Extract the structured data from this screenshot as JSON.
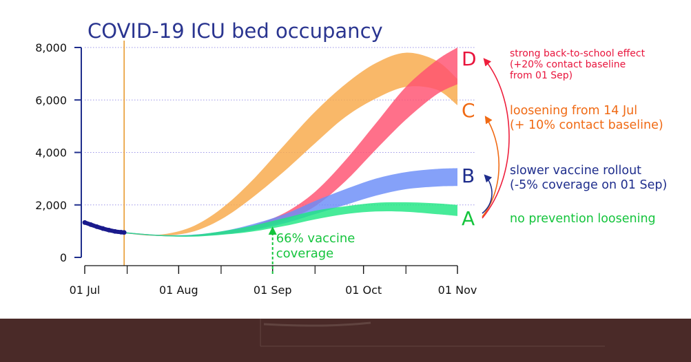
{
  "chart_data": {
    "type": "area",
    "title": "COVID-19 ICU bed occupancy",
    "xlabel": "",
    "ylabel": "",
    "x_domain": [
      "2021-07-01",
      "2021-11-01"
    ],
    "ylim": [
      0,
      8000
    ],
    "y_ticks": [
      0,
      2000,
      4000,
      6000,
      8000
    ],
    "y_tick_labels": [
      "0",
      "2,000",
      "4,000",
      "6,000",
      "8,000"
    ],
    "x_ticks": [
      "2021-07-01",
      "2021-08-01",
      "2021-09-01",
      "2021-10-01",
      "2021-11-01"
    ],
    "x_tick_labels": [
      "01 Jul",
      "01 Aug",
      "01 Sep",
      "01 Oct",
      "01 Nov"
    ],
    "x_minor_ticks": [
      "2021-07-15",
      "2021-08-15",
      "2021-09-15",
      "2021-10-15"
    ],
    "grid": "horizontal-dotted",
    "vline_date": "2021-07-14",
    "observed": {
      "x": [
        "2021-07-01",
        "2021-07-03",
        "2021-07-05",
        "2021-07-07",
        "2021-07-09",
        "2021-07-11",
        "2021-07-13",
        "2021-07-14"
      ],
      "y": [
        1330,
        1250,
        1170,
        1100,
        1040,
        990,
        960,
        950
      ],
      "color": "#1a1a8c"
    },
    "annotation": {
      "date": "2021-09-01",
      "text_lines": [
        "66% vaccine",
        "coverage"
      ],
      "color": "#14c43c"
    },
    "series": [
      {
        "name": "C",
        "label_lines": [
          "loosening from 14 Jul",
          "(+ 10% contact baseline)"
        ],
        "color": "#f8a848",
        "label_color": "#f06a14",
        "x": [
          "2021-07-14",
          "2021-07-25",
          "2021-08-05",
          "2021-08-15",
          "2021-08-25",
          "2021-09-05",
          "2021-09-15",
          "2021-09-25",
          "2021-10-05",
          "2021-10-15",
          "2021-10-25",
          "2021-11-01"
        ],
        "lower": [
          920,
          820,
          960,
          1450,
          2250,
          3300,
          4350,
          5350,
          6050,
          6500,
          6400,
          5800
        ],
        "upper": [
          960,
          860,
          1150,
          1850,
          2900,
          4300,
          5550,
          6600,
          7400,
          7800,
          7500,
          6800
        ]
      },
      {
        "name": "D",
        "label_lines": [
          "strong back-to-school effect",
          "(+20% contact baseline",
          "from 01 Sep)"
        ],
        "color": "#ff5070",
        "label_color": "#e8143c",
        "x": [
          "2021-07-14",
          "2021-07-25",
          "2021-08-05",
          "2021-08-15",
          "2021-08-25",
          "2021-09-05",
          "2021-09-15",
          "2021-09-25",
          "2021-10-05",
          "2021-10-15",
          "2021-10-25",
          "2021-11-01"
        ],
        "lower": [
          920,
          820,
          800,
          880,
          1050,
          1400,
          1950,
          2900,
          4100,
          5250,
          6200,
          6600
        ],
        "upper": [
          960,
          860,
          850,
          970,
          1200,
          1700,
          2500,
          3700,
          5100,
          6500,
          7500,
          8000
        ]
      },
      {
        "name": "B",
        "label_lines": [
          "slower vaccine rollout",
          "(-5% coverage on 01 Sep)"
        ],
        "color": "#6a8cf8",
        "label_color": "#1e2d8c",
        "x": [
          "2021-07-14",
          "2021-07-25",
          "2021-08-05",
          "2021-08-15",
          "2021-08-25",
          "2021-09-05",
          "2021-09-15",
          "2021-09-25",
          "2021-10-05",
          "2021-10-15",
          "2021-10-25",
          "2021-11-01"
        ],
        "lower": [
          920,
          820,
          800,
          870,
          1020,
          1300,
          1650,
          2000,
          2350,
          2600,
          2700,
          2720
        ],
        "upper": [
          960,
          860,
          860,
          990,
          1250,
          1650,
          2150,
          2600,
          3000,
          3250,
          3370,
          3400
        ]
      },
      {
        "name": "A",
        "label_lines": [
          "no prevention loosening"
        ],
        "color": "#1ee682",
        "label_color": "#14c43c",
        "x": [
          "2021-07-14",
          "2021-07-25",
          "2021-08-05",
          "2021-08-15",
          "2021-08-25",
          "2021-09-05",
          "2021-09-15",
          "2021-09-25",
          "2021-10-05",
          "2021-10-15",
          "2021-10-25",
          "2021-11-01"
        ],
        "lower": [
          920,
          820,
          790,
          860,
          980,
          1200,
          1450,
          1650,
          1750,
          1740,
          1650,
          1580
        ],
        "upper": [
          960,
          860,
          850,
          990,
          1200,
          1500,
          1780,
          1950,
          2080,
          2100,
          2060,
          2000
        ]
      }
    ],
    "band_order": [
      "C",
      "D",
      "B",
      "A"
    ],
    "label_order": [
      "D",
      "C",
      "B",
      "A"
    ],
    "colors": {
      "title": "#2a3590",
      "axis": "#1e2d8c",
      "grid": "#9b94e8",
      "vline": "#e89a30",
      "arrow_d": "#ee1e3c",
      "arrow_c": "#f06a14",
      "arrow_b": "#1e2d8c",
      "footer": "#4a2a28"
    }
  }
}
